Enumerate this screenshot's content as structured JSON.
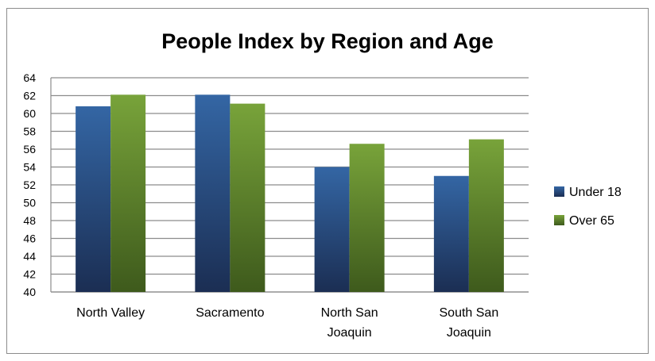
{
  "chart_data": {
    "type": "bar",
    "title": "People Index by Region and Age",
    "xlabel": "",
    "ylabel": "",
    "categories": [
      [
        "North Valley"
      ],
      [
        "Sacramento"
      ],
      [
        "North San",
        "Joaquin"
      ],
      [
        "South San",
        "Joaquin"
      ]
    ],
    "series": [
      {
        "name": "Under 18",
        "values": [
          60.8,
          62.1,
          54.0,
          53.0
        ]
      },
      {
        "name": "Over 65",
        "values": [
          62.1,
          61.1,
          56.6,
          57.1
        ]
      }
    ],
    "ylim": [
      40,
      64
    ],
    "yticks": [
      "40",
      "42",
      "44",
      "46",
      "48",
      "50",
      "52",
      "54",
      "56",
      "58",
      "60",
      "62",
      "64"
    ],
    "grid": true,
    "legend_position": "right",
    "colors": {
      "under18_top": "#3466a4",
      "under18_bottom": "#1b2e53",
      "over65_top": "#78a33a",
      "over65_bottom": "#3e5a1c",
      "grid": "#8c8c8c"
    }
  }
}
